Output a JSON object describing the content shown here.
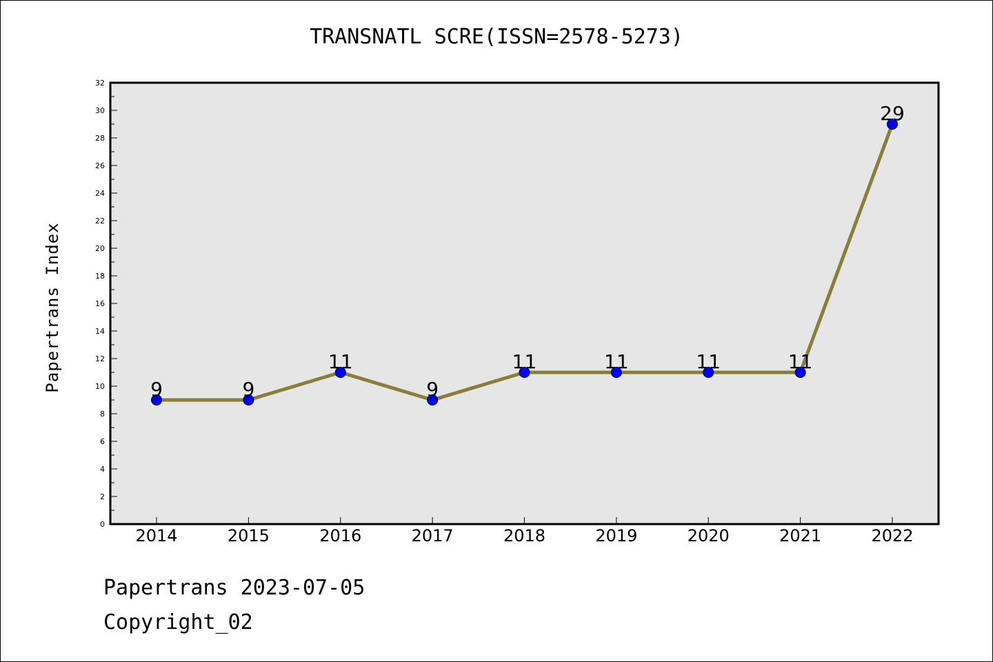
{
  "chart_data": {
    "type": "line",
    "title": "TRANSNATL SCRE(ISSN=2578-5273)",
    "ylabel": "Papertrans Index",
    "xlabel": "",
    "categories": [
      "2014",
      "2015",
      "2016",
      "2017",
      "2018",
      "2019",
      "2020",
      "2021",
      "2022"
    ],
    "series": [
      {
        "values": [
          9,
          9,
          11,
          9,
          11,
          11,
          11,
          11,
          29
        ]
      }
    ],
    "ylim": [
      0,
      32
    ],
    "yticks": [
      "0",
      "2",
      "4",
      "6",
      "8",
      "10",
      "12",
      "14",
      "16",
      "18",
      "20",
      "22",
      "24",
      "26",
      "28",
      "30",
      "32"
    ],
    "data_labels": [
      "9",
      "9",
      "11",
      "9",
      "11",
      "11",
      "11",
      "11",
      "29"
    ],
    "grid": false,
    "colors": {
      "line": "#8B7D3A",
      "marker": "#0000FF",
      "plot_background": "#E6E6E6"
    }
  },
  "footer": {
    "date_line": "Papertrans 2023-07-05",
    "copyright_line": "Copyright_02"
  }
}
